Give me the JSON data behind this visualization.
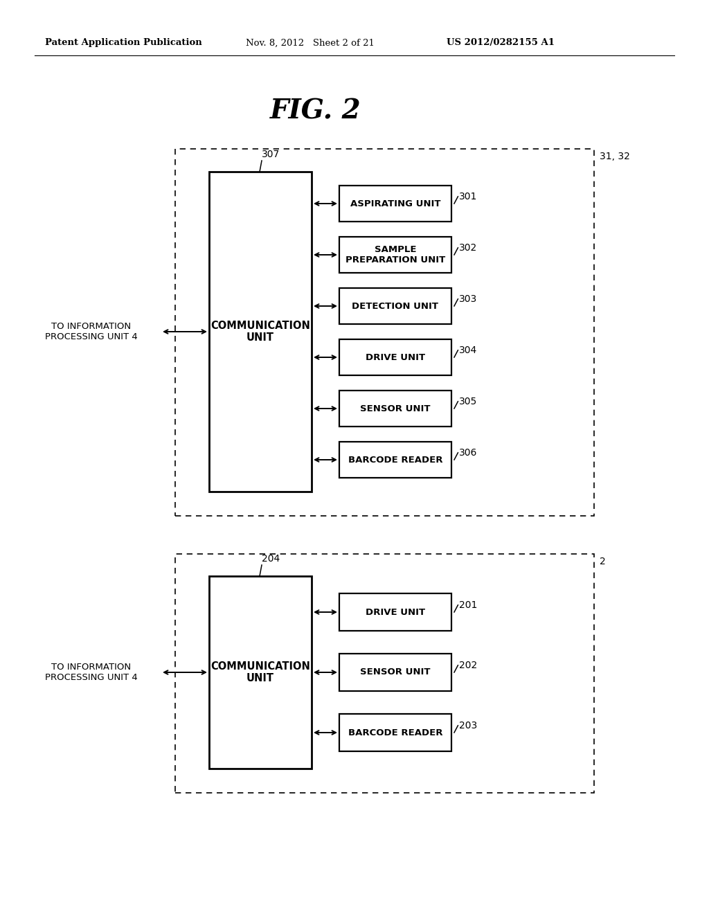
{
  "background_color": "#ffffff",
  "header_left": "Patent Application Publication",
  "header_mid": "Nov. 8, 2012   Sheet 2 of 21",
  "header_right": "US 2012/0282155 A1",
  "fig_title": "FIG. 2",
  "top_diagram": {
    "outer_label": "31, 32",
    "comm_label": "307",
    "comm_box_text": "COMMUNICATION\nUNIT",
    "left_label": "TO INFORMATION\nPROCESSING UNIT 4",
    "units": [
      {
        "label": "ASPIRATING UNIT",
        "number": "301"
      },
      {
        "label": "SAMPLE\nPREPARATION UNIT",
        "number": "302"
      },
      {
        "label": "DETECTION UNIT",
        "number": "303"
      },
      {
        "label": "DRIVE UNIT",
        "number": "304"
      },
      {
        "label": "SENSOR UNIT",
        "number": "305"
      },
      {
        "label": "BARCODE READER",
        "number": "306"
      }
    ]
  },
  "bot_diagram": {
    "outer_label": "2",
    "comm_label": "204",
    "comm_box_text": "COMMUNICATION\nUNIT",
    "left_label": "TO INFORMATION\nPROCESSING UNIT 4",
    "units": [
      {
        "label": "DRIVE UNIT",
        "number": "201"
      },
      {
        "label": "SENSOR UNIT",
        "number": "202"
      },
      {
        "label": "BARCODE READER",
        "number": "203"
      }
    ]
  }
}
